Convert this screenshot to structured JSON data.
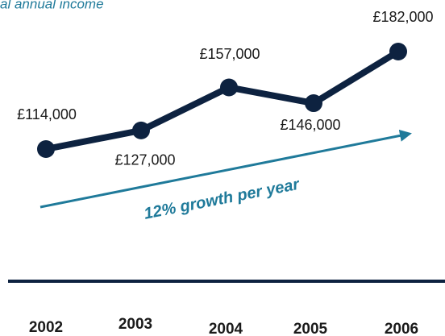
{
  "chart_data": {
    "type": "line",
    "title": "al annual income",
    "categories": [
      "2002",
      "2003",
      "2004",
      "2005",
      "2006"
    ],
    "series": [
      {
        "name": null,
        "color": "#0d2240",
        "values": [
          114000,
          127000,
          157000,
          146000,
          182000
        ],
        "value_labels": [
          "£114,000",
          "£127,000",
          "£157,000",
          "£146,000",
          "£182,000"
        ]
      }
    ],
    "annotation": "12% growth per year",
    "annotation_color": "#1f7a9a"
  }
}
